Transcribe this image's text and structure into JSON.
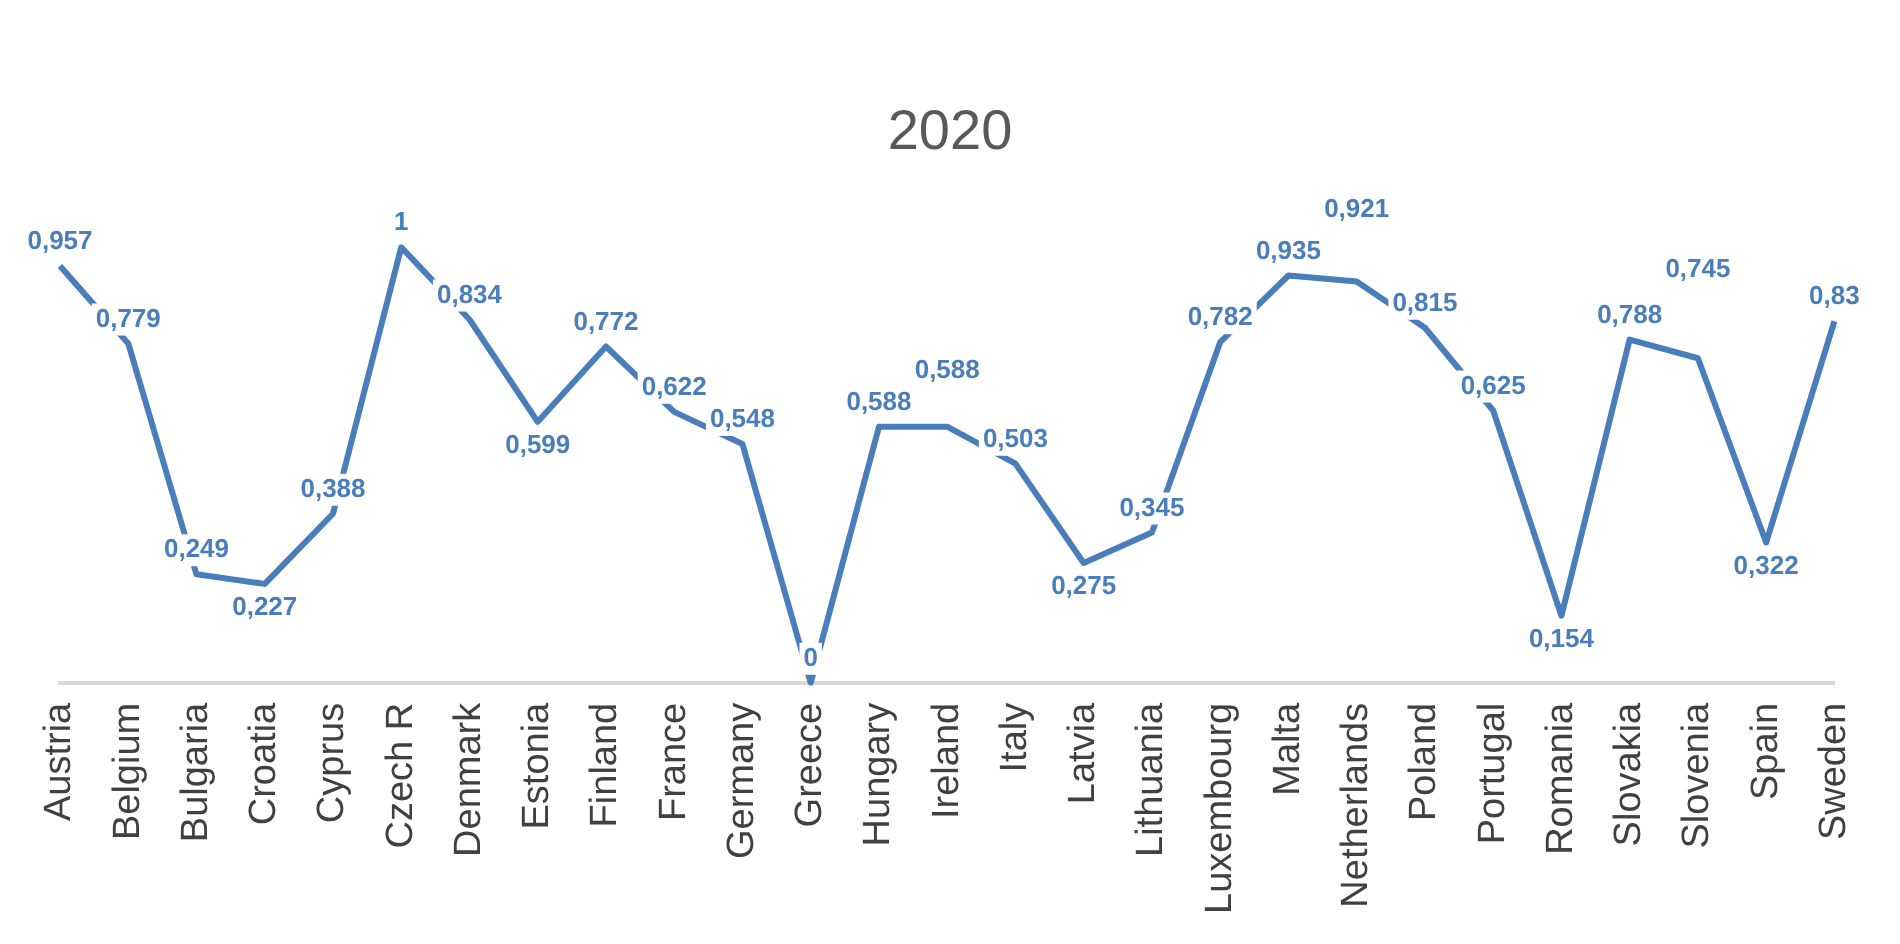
{
  "chart_data": {
    "type": "line",
    "title": "2020",
    "categories": [
      "Austria",
      "Belgium",
      "Bulgaria",
      "Croatia",
      "Cyprus",
      "Czech R",
      "Denmark",
      "Estonia",
      "Finland",
      "France",
      "Germany",
      "Greece",
      "Hungary",
      "Ireland",
      "Italy",
      "Latvia",
      "Lithuania",
      "Luxembourg",
      "Malta",
      "Netherlands",
      "Poland",
      "Portugal",
      "Romania",
      "Slovakia",
      "Slovenia",
      "Spain",
      "Sweden"
    ],
    "series": [
      {
        "color": "#4a7ebb",
        "values": [
          0.957,
          0.779,
          0.249,
          0.227,
          0.388,
          1,
          0.834,
          0.599,
          0.772,
          0.622,
          0.548,
          0,
          0.588,
          0.588,
          0.503,
          0.275,
          0.345,
          0.782,
          0.935,
          0.921,
          0.815,
          0.625,
          0.154,
          0.788,
          0.745,
          0.322,
          0.83
        ],
        "value_labels": [
          "0,957",
          "0,779",
          "0,249",
          "0,227",
          "0,388",
          "1",
          "0,834",
          "0,599",
          "0,772",
          "0,622",
          "0,548",
          "0",
          "0,588",
          "0,588",
          "0,503",
          "0,275",
          "0,345",
          "0,782",
          "0,935",
          "0,921",
          "0,815",
          "0,625",
          "0,154",
          "0,788",
          "0,745",
          "0,322",
          "0,83"
        ]
      }
    ],
    "tick_labels": "x",
    "grid": false,
    "legend": false,
    "marker": "none",
    "line_style": "solid"
  }
}
